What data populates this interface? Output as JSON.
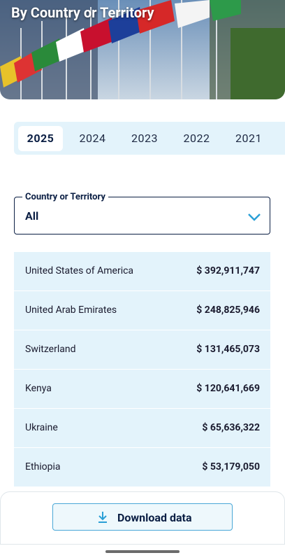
{
  "header": {
    "title": "By Country or Territory"
  },
  "tabs": {
    "items": [
      "2025",
      "2024",
      "2023",
      "2022",
      "2021"
    ],
    "selected": 0
  },
  "filter": {
    "label": "Country or Territory",
    "value": "All"
  },
  "table": {
    "rows": [
      [
        "United States of America",
        "$ 392,911,747"
      ],
      [
        "United Arab Emirates",
        "$ 248,825,946"
      ],
      [
        "Switzerland",
        "$ 131,465,073"
      ],
      [
        "Kenya",
        "$ 120,641,669"
      ],
      [
        "Ukraine",
        "$ 65,636,322"
      ],
      [
        "Ethiopia",
        "$ 53,179,050"
      ]
    ]
  },
  "footer": {
    "button": "Download data"
  }
}
